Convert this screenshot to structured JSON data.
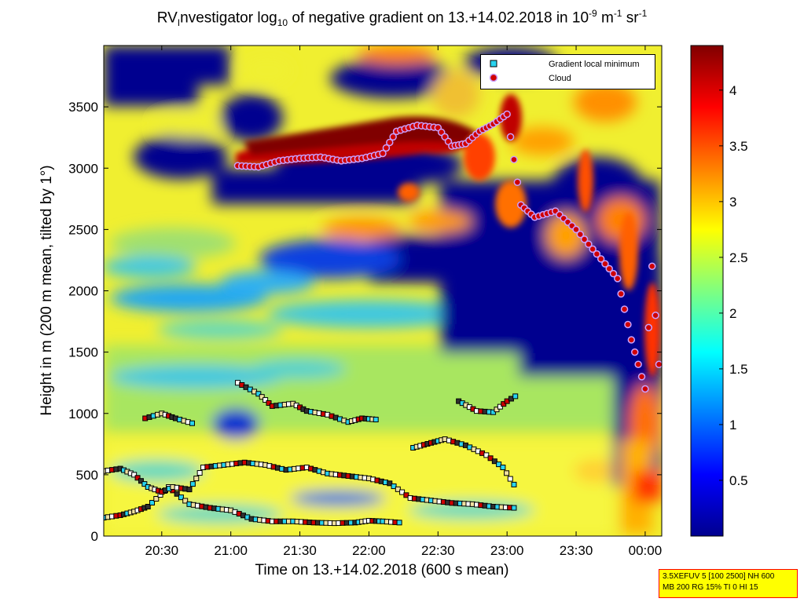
{
  "chart_data": {
    "type": "heatmap",
    "title": {
      "pre": "RV",
      "sub": "I",
      "mid": "nvestigator log",
      "sub2": "10",
      "post": " of negative gradient on 13.+14.02.2018 in 10",
      "sup": "-9",
      "unit2": " m",
      "sup2": "-1",
      "unit3": " sr",
      "sup3": "-1"
    },
    "xlabel": "Time on 13.+14.02.2018 (600 s mean)",
    "ylabel": "Height in m (200 m mean, tilted by 1°)",
    "x_range_hours": [
      20.08,
      24.12
    ],
    "y_range": [
      0,
      4000
    ],
    "x_ticks": [
      {
        "label": "20:30",
        "hour": 20.5
      },
      {
        "label": "21:00",
        "hour": 21.0
      },
      {
        "label": "21:30",
        "hour": 21.5
      },
      {
        "label": "22:00",
        "hour": 22.0
      },
      {
        "label": "22:30",
        "hour": 22.5
      },
      {
        "label": "23:00",
        "hour": 23.0
      },
      {
        "label": "23:30",
        "hour": 23.5
      },
      {
        "label": "00:00",
        "hour": 24.0
      }
    ],
    "y_ticks": [
      {
        "label": "0",
        "value": 0
      },
      {
        "label": "500",
        "value": 500
      },
      {
        "label": "1000",
        "value": 1000
      },
      {
        "label": "1500",
        "value": 1500
      },
      {
        "label": "2000",
        "value": 2000
      },
      {
        "label": "2500",
        "value": 2500
      },
      {
        "label": "3000",
        "value": 3000
      },
      {
        "label": "3500",
        "value": 3500
      }
    ],
    "colorbar": {
      "range": [
        0,
        4.4
      ],
      "ticks": [
        {
          "label": "0.5",
          "value": 0.5
        },
        {
          "label": "1",
          "value": 1
        },
        {
          "label": "1.5",
          "value": 1.5
        },
        {
          "label": "2",
          "value": 2
        },
        {
          "label": "2.5",
          "value": 2.5
        },
        {
          "label": "3",
          "value": 3
        },
        {
          "label": "3.5",
          "value": 3.5
        },
        {
          "label": "4",
          "value": 4
        }
      ]
    },
    "legend": {
      "placement": "top-right",
      "entries": [
        {
          "label": "Gradient local minimum",
          "marker": "square",
          "color": "#29d3ef"
        },
        {
          "label": "Cloud",
          "marker": "circle",
          "color": "#d00000"
        }
      ]
    },
    "series": [
      {
        "name": "Gradient local minimum",
        "kind": "layer",
        "points": [
          [
            20.08,
            150
          ],
          [
            20.2,
            170
          ],
          [
            20.3,
            200
          ],
          [
            20.4,
            240
          ],
          [
            20.55,
            400
          ],
          [
            20.7,
            260
          ],
          [
            20.85,
            230
          ],
          [
            21.0,
            210
          ],
          [
            21.15,
            140
          ],
          [
            21.3,
            120
          ],
          [
            21.45,
            120
          ],
          [
            21.6,
            110
          ],
          [
            21.75,
            105
          ],
          [
            21.9,
            110
          ],
          [
            22.0,
            125
          ],
          [
            22.1,
            120
          ],
          [
            22.22,
            110
          ]
        ]
      },
      {
        "name": "Gradient local minimum",
        "kind": "layer",
        "points": [
          [
            20.08,
            530
          ],
          [
            20.2,
            550
          ],
          [
            20.3,
            500
          ],
          [
            20.4,
            400
          ],
          [
            20.5,
            360
          ],
          [
            20.58,
            400
          ],
          [
            20.7,
            380
          ],
          [
            20.8,
            560
          ],
          [
            20.95,
            580
          ],
          [
            21.1,
            600
          ],
          [
            21.25,
            580
          ],
          [
            21.4,
            540
          ],
          [
            21.55,
            560
          ],
          [
            21.7,
            510
          ],
          [
            21.85,
            490
          ],
          [
            22.0,
            470
          ],
          [
            22.15,
            430
          ],
          [
            22.3,
            310
          ],
          [
            22.45,
            290
          ],
          [
            22.6,
            270
          ],
          [
            22.75,
            260
          ],
          [
            22.9,
            240
          ],
          [
            23.05,
            230
          ]
        ]
      },
      {
        "name": "Gradient local minimum",
        "kind": "layer",
        "points": [
          [
            21.05,
            1250
          ],
          [
            21.2,
            1160
          ],
          [
            21.3,
            1060
          ],
          [
            21.45,
            1080
          ],
          [
            21.55,
            1020
          ],
          [
            21.7,
            990
          ],
          [
            21.85,
            930
          ],
          [
            21.95,
            960
          ],
          [
            22.05,
            950
          ]
        ]
      },
      {
        "name": "Gradient local minimum",
        "kind": "layer",
        "points": [
          [
            20.38,
            960
          ],
          [
            20.5,
            1000
          ],
          [
            20.6,
            960
          ],
          [
            20.72,
            920
          ]
        ]
      },
      {
        "name": "Gradient local minimum",
        "kind": "layer",
        "points": [
          [
            22.65,
            1100
          ],
          [
            22.78,
            1020
          ],
          [
            22.9,
            1010
          ],
          [
            23.0,
            1100
          ],
          [
            23.06,
            1140
          ]
        ]
      },
      {
        "name": "Gradient local minimum",
        "kind": "layer",
        "points": [
          [
            22.32,
            720
          ],
          [
            22.45,
            760
          ],
          [
            22.55,
            790
          ],
          [
            22.7,
            740
          ],
          [
            22.85,
            660
          ],
          [
            22.97,
            560
          ],
          [
            23.05,
            420
          ]
        ]
      },
      {
        "name": "Cloud",
        "kind": "cloud-base",
        "points": [
          [
            21.05,
            3020
          ],
          [
            21.2,
            3010
          ],
          [
            21.35,
            3060
          ],
          [
            21.5,
            3080
          ],
          [
            21.65,
            3090
          ],
          [
            21.8,
            3060
          ],
          [
            21.95,
            3080
          ],
          [
            22.1,
            3120
          ],
          [
            22.2,
            3300
          ],
          [
            22.35,
            3350
          ],
          [
            22.5,
            3330
          ],
          [
            22.6,
            3180
          ],
          [
            22.7,
            3200
          ],
          [
            22.8,
            3300
          ],
          [
            22.9,
            3360
          ],
          [
            23.0,
            3440
          ],
          [
            23.1,
            2700
          ],
          [
            23.2,
            2600
          ],
          [
            23.35,
            2650
          ],
          [
            23.5,
            2500
          ],
          [
            23.65,
            2300
          ],
          [
            23.8,
            2100
          ],
          [
            23.9,
            1600
          ],
          [
            24.0,
            1200
          ],
          [
            24.05,
            2200
          ],
          [
            24.1,
            1400
          ]
        ]
      }
    ]
  },
  "infobox": {
    "line1": "3.5XEFUV 5 [100 2500] NH 600",
    "line2": "MB 200 RG 15% TI 0 HI 15"
  }
}
